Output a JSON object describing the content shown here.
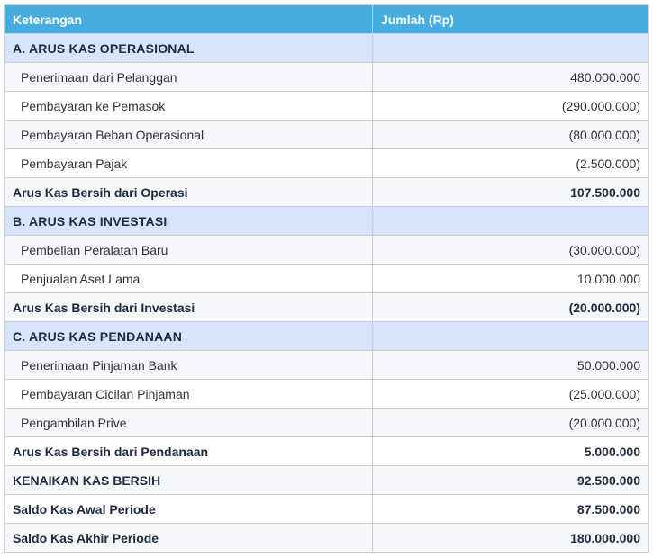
{
  "table": {
    "headers": {
      "description": "Keterangan",
      "amount": "Jumlah (Rp)"
    },
    "sections": [
      {
        "title": "A. ARUS KAS OPERASIONAL",
        "items": [
          {
            "label": "Penerimaan dari Pelanggan",
            "amount": "480.000.000"
          },
          {
            "label": "Pembayaran ke Pemasok",
            "amount": "(290.000.000)"
          },
          {
            "label": "Pembayaran Beban Operasional",
            "amount": "(80.000.000)"
          },
          {
            "label": "Pembayaran Pajak",
            "amount": "(2.500.000)"
          }
        ],
        "subtotal": {
          "label": "Arus Kas Bersih dari Operasi",
          "amount": "107.500.000"
        }
      },
      {
        "title": "B. ARUS KAS INVESTASI",
        "items": [
          {
            "label": "Pembelian Peralatan Baru",
            "amount": "(30.000.000)"
          },
          {
            "label": "Penjualan Aset Lama",
            "amount": "10.000.000"
          }
        ],
        "subtotal": {
          "label": "Arus Kas Bersih dari Investasi",
          "amount": "(20.000.000)"
        }
      },
      {
        "title": "C. ARUS KAS PENDANAAN",
        "items": [
          {
            "label": "Penerimaan Pinjaman Bank",
            "amount": "50.000.000"
          },
          {
            "label": "Pembayaran Cicilan Pinjaman",
            "amount": "(25.000.000)"
          },
          {
            "label": "Pengambilan Prive",
            "amount": "(20.000.000)"
          }
        ],
        "subtotal": {
          "label": "Arus Kas Bersih dari Pendanaan",
          "amount": "5.000.000"
        }
      }
    ],
    "totals": [
      {
        "label": "KENAIKAN KAS BERSIH",
        "amount": "92.500.000"
      },
      {
        "label": "Saldo Kas Awal Periode",
        "amount": "87.500.000"
      },
      {
        "label": "Saldo Kas Akhir Periode",
        "amount": "180.000.000"
      }
    ]
  },
  "colors": {
    "header_bg": "#45ade0",
    "header_text": "#ffffff",
    "section_bg": "#d6e4fc",
    "row_alt_bg": "#f5f7fa",
    "border": "#cfcfcf"
  }
}
